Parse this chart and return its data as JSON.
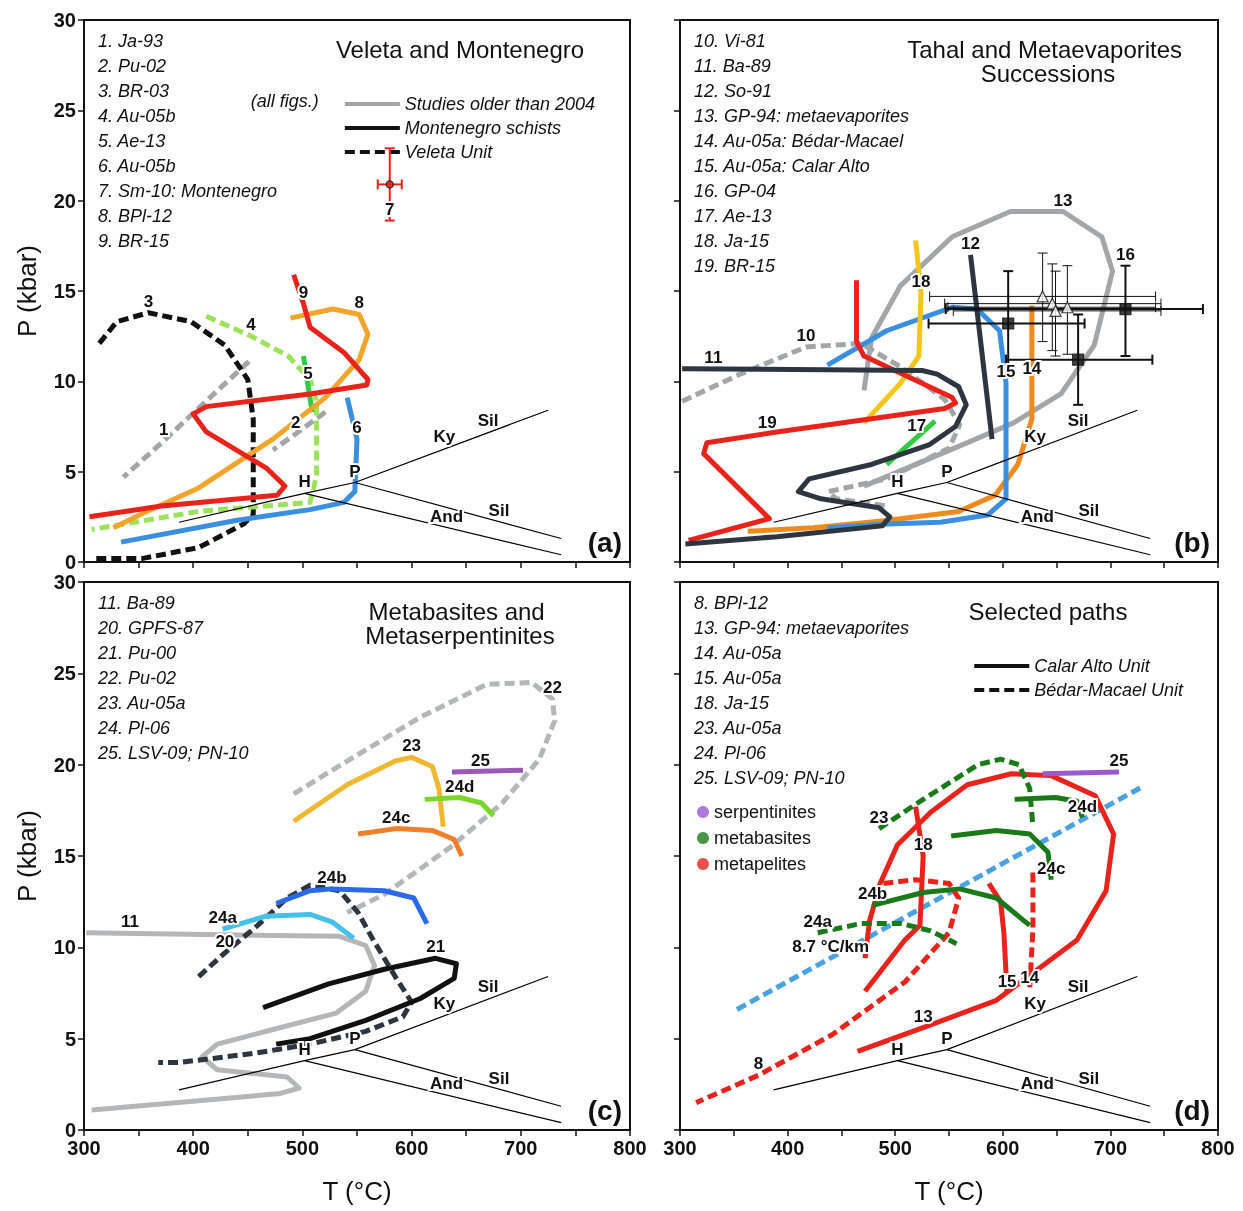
{
  "chart_data": [
    {
      "type": "line",
      "title": "Veleta and Montenegro",
      "ylabel": "P (kbar)",
      "legend_title": "(all figs.)",
      "legend": "top right",
      "tick_labels": "y",
      "grid": false,
      "marker": "none",
      "xlim": [
        300,
        800
      ],
      "ylim": [
        0,
        30
      ],
      "xticks": [
        300,
        {
          "value": 350,
          "label": null
        },
        400,
        {
          "value": 450,
          "label": null
        },
        500,
        {
          "value": 550,
          "label": null
        },
        600,
        {
          "value": 650,
          "label": null
        },
        700,
        {
          "value": 750,
          "label": null
        },
        800
      ],
      "yticks": [
        0,
        5,
        10,
        15,
        20,
        25,
        30
      ],
      "annotations": [
        "1. Ja-93",
        "2. Pu-02",
        "3. BR-03",
        "4. Au-05b",
        "5. Ae-13",
        "6. Au-05b",
        "7. Sm-10: Montenegro",
        "8. BPl-12",
        "9. BR-15",
        {
          "text": "1",
          "x": 373,
          "y": 6.7
        },
        {
          "text": "2",
          "x": 494,
          "y": 7.1
        },
        {
          "text": "3",
          "x": 359,
          "y": 13.8
        },
        {
          "text": "4",
          "x": 453,
          "y": 12.5
        },
        {
          "text": "5",
          "x": 505,
          "y": 9.8
        },
        {
          "text": "6",
          "x": 550,
          "y": 6.8
        },
        {
          "text": "7",
          "x": 580,
          "y": 18.9
        },
        {
          "text": "8",
          "x": 552,
          "y": 13.7
        },
        {
          "text": "9",
          "x": 501,
          "y": 14.3
        },
        {
          "text": "H",
          "x": 502,
          "y": 3.8
        },
        {
          "text": "P",
          "x": 548,
          "y": 4.4
        },
        {
          "text": "Ky",
          "x": 630,
          "y": 6.3
        },
        {
          "text": "Sil",
          "x": 670,
          "y": 7.2
        },
        {
          "text": "Sil",
          "x": 680,
          "y": 2.2
        },
        {
          "text": "And",
          "x": 632,
          "y": 1.9
        },
        "(a)"
      ],
      "series": [
        {
          "name": "Studies older than 2004",
          "color": "#a2a6a8",
          "line_style": "solid"
        },
        {
          "name": "Montenegro schists",
          "color": "#111111",
          "line_style": "solid"
        },
        {
          "name": "Veleta Unit",
          "color": "#111111",
          "line_style": "dashed"
        },
        {
          "color": "#000000",
          "x": [
            387,
            502,
            548,
            725
          ],
          "values": [
            2.2,
            3.8,
            4.4,
            8.4
          ]
        },
        {
          "color": "#000000",
          "x": [
            548,
            737
          ],
          "values": [
            4.4,
            1.3
          ]
        },
        {
          "color": "#000000",
          "x": [
            502,
            737
          ],
          "values": [
            3.8,
            0.4
          ]
        },
        {
          "color": "#a2a6a8",
          "line_style": "dashed",
          "x": [
            451,
            394,
            373,
            336
          ],
          "values": [
            11.1,
            7.9,
            6.7,
            4.7
          ]
        },
        {
          "color": "#a2a6a8",
          "line_style": "dashed",
          "x": [
            521,
            494,
            473
          ],
          "values": [
            8.3,
            7.1,
            6.2
          ]
        },
        {
          "color": "#111111",
          "line_style": "dashed",
          "x": [
            314,
            330,
            359,
            398,
            429,
            450,
            455,
            455,
            446,
            405,
            354,
            307
          ],
          "values": [
            12.1,
            13.3,
            13.8,
            13.3,
            12.0,
            10.1,
            7.9,
            2.6,
            2.1,
            0.8,
            0.2,
            0.2
          ]
        },
        {
          "color": "#9be35a",
          "line_style": "dashed",
          "x": [
            412,
            453,
            487,
            507,
            513,
            513,
            507,
            405,
            307
          ],
          "values": [
            13.6,
            12.5,
            11.4,
            10.1,
            8.9,
            4.8,
            3.3,
            2.8,
            1.8
          ]
        },
        {
          "color": "#2ecc40",
          "x": [
            509,
            505,
            501
          ],
          "values": [
            8.3,
            9.8,
            11.4
          ]
        },
        {
          "color": "#3a8fe0",
          "x": [
            541,
            550,
            548,
            538,
            507,
            439,
            334
          ],
          "values": [
            9.1,
            6.8,
            3.9,
            3.3,
            2.9,
            2.3,
            1.1
          ]
        },
        {
          "color": "#f2a52a",
          "x": [
            489,
            528,
            552,
            560,
            552,
            521,
            473,
            405,
            354,
            327
          ],
          "values": [
            13.5,
            14.0,
            13.7,
            12.6,
            11.2,
            9.1,
            6.8,
            4.1,
            2.7,
            1.9
          ]
        },
        {
          "color": "#e8231b",
          "x": [
            492,
            501,
            507,
            538,
            560,
            559,
            507,
            412,
            400,
            412,
            467,
            484,
            477,
            371,
            305
          ],
          "values": [
            15.9,
            14.3,
            13.0,
            11.6,
            10.1,
            9.8,
            9.3,
            8.6,
            8.2,
            7.2,
            5.2,
            4.2,
            3.7,
            3.1,
            2.5
          ]
        },
        {
          "type": "scatter",
          "marker": "circle",
          "color": "#e8231b",
          "x": [
            580
          ],
          "values": [
            20.9
          ],
          "errors": [
            [
              18.9,
              22.9
            ]
          ],
          "xerrors": [
            [
              569,
              591
            ]
          ]
        }
      ]
    },
    {
      "type": "line",
      "title": "Tahal and Metaevaporites Successions",
      "tick_labels": false,
      "grid": false,
      "marker": "none",
      "xlim": [
        300,
        800
      ],
      "ylim": [
        0,
        30
      ],
      "xticks": [
        300,
        {
          "value": 350,
          "label": null
        },
        400,
        {
          "value": 450,
          "label": null
        },
        500,
        {
          "value": 550,
          "label": null
        },
        600,
        {
          "value": 650,
          "label": null
        },
        700,
        {
          "value": 750,
          "label": null
        },
        800
      ],
      "yticks": [
        0,
        5,
        10,
        15,
        20,
        25,
        30
      ],
      "annotations": [
        "10. Vi-81",
        "11. Ba-89",
        "12. So-91",
        "13. GP-94: metaevaporites",
        "14. Au-05a: Bédar-Macael",
        "15. Au-05a: Calar Alto",
        "16. GP-04",
        "17. Ae-13",
        "18. Ja-15",
        "19. BR-15",
        {
          "text": "10",
          "x": 417,
          "y": 11.9
        },
        {
          "text": "11",
          "x": 331,
          "y": 10.7
        },
        {
          "text": "12",
          "x": 570,
          "y": 17.0
        },
        {
          "text": "13",
          "x": 656,
          "y": 19.4
        },
        {
          "text": "14",
          "x": 627,
          "y": 10.1
        },
        {
          "text": "15",
          "x": 603,
          "y": 9.9
        },
        {
          "text": "16",
          "x": 714,
          "y": 16.4
        },
        {
          "text": "17",
          "x": 520,
          "y": 6.9
        },
        {
          "text": "18",
          "x": 524,
          "y": 14.9
        },
        {
          "text": "19",
          "x": 381,
          "y": 7.1
        },
        {
          "text": "H",
          "x": 502,
          "y": 3.8
        },
        {
          "text": "P",
          "x": 548,
          "y": 4.4
        },
        {
          "text": "Ky",
          "x": 630,
          "y": 6.3
        },
        {
          "text": "Sil",
          "x": 670,
          "y": 7.2
        },
        {
          "text": "Sil",
          "x": 680,
          "y": 2.2
        },
        {
          "text": "And",
          "x": 632,
          "y": 1.9
        },
        "(b)"
      ],
      "series": [
        {
          "color": "#000000",
          "x": [
            387,
            502,
            548,
            725
          ],
          "values": [
            2.2,
            3.8,
            4.4,
            8.4
          ]
        },
        {
          "color": "#000000",
          "x": [
            548,
            737
          ],
          "values": [
            4.4,
            1.3
          ]
        },
        {
          "color": "#000000",
          "x": [
            502,
            737
          ],
          "values": [
            3.8,
            0.4
          ]
        },
        {
          "color": "#a2a6a8",
          "line_style": "dashed",
          "x": [
            302,
            356,
            417,
            468,
            505,
            546,
            560,
            550,
            492,
            438,
            445,
            492
          ],
          "values": [
            8.9,
            10.4,
            11.9,
            12.1,
            10.8,
            9.0,
            7.6,
            6.3,
            4.6,
            3.9,
            3.5,
            3.1
          ]
        },
        {
          "color": "#a2a6a8",
          "x": [
            471,
            478,
            505,
            553,
            607,
            656,
            692,
            702,
            685,
            654,
            610,
            559,
            471
          ],
          "values": [
            9.5,
            12.4,
            15.3,
            18.0,
            19.4,
            19.4,
            18.0,
            16.1,
            12.0,
            9.3,
            7.7,
            6.4,
            4.2
          ]
        },
        {
          "color": "#f08a1c",
          "x": [
            627,
            627,
            614,
            593,
            559,
            492,
            424,
            363
          ],
          "values": [
            14.2,
            7.9,
            5.4,
            3.7,
            2.8,
            2.3,
            1.9,
            1.7
          ]
        },
        {
          "color": "#3a8fe0",
          "x": [
            437,
            492,
            553,
            576,
            597,
            603,
            603,
            586,
            542,
            492,
            437
          ],
          "values": [
            10.9,
            12.8,
            14.1,
            14.0,
            12.8,
            9.9,
            3.5,
            2.6,
            2.2,
            2.1,
            1.9
          ]
        },
        {
          "color": "#f5c518",
          "x": [
            519,
            524,
            522,
            505,
            471
          ],
          "values": [
            17.8,
            14.9,
            11.4,
            9.9,
            7.7
          ]
        },
        {
          "color": "#e8231b",
          "x": [
            464,
            464,
            471,
            553,
            556,
            546,
            390,
            325,
            322,
            383,
            308
          ],
          "values": [
            15.6,
            12.2,
            11.4,
            9.1,
            8.8,
            8.5,
            7.2,
            6.6,
            6.0,
            2.4,
            1.2
          ]
        },
        {
          "color": "#2ecc40",
          "x": [
            492,
            537
          ],
          "values": [
            5.4,
            7.8
          ]
        },
        {
          "color": "#2d3640",
          "x": [
            302,
            525,
            539,
            559,
            566,
            556,
            532,
            478,
            420,
            410,
            431,
            485,
            495,
            488,
            390,
            305
          ],
          "values": [
            10.7,
            10.6,
            10.4,
            9.7,
            8.7,
            7.5,
            6.5,
            5.4,
            4.6,
            3.9,
            3.5,
            3.0,
            2.5,
            2.0,
            1.4,
            1.0
          ]
        },
        {
          "color": "#2d3640",
          "x": [
            570,
            590
          ],
          "values": [
            17.0,
            6.8
          ]
        },
        {
          "type": "scatter",
          "marker": "square",
          "color": "#111111",
          "x": [
            605,
            714,
            670
          ],
          "values": [
            13.2,
            14.0,
            11.2
          ],
          "errors": [
            [
              10.2,
              16.1
            ],
            [
              11.4,
              16.4
            ],
            [
              8.7,
              13.7
            ]
          ],
          "xerrors": [
            [
              531,
              676
            ],
            [
              547,
              786
            ],
            [
              603,
              739
            ]
          ]
        },
        {
          "type": "scatter",
          "marker": "triangle",
          "color": "#ffffff",
          "x": [
            637,
            646,
            649,
            660
          ],
          "values": [
            14.7,
            14.3,
            13.9,
            14.1
          ],
          "errors": [
            [
              12.2,
              17.1
            ],
            [
              11.7,
              16.5
            ],
            [
              11.4,
              16.1
            ],
            [
              11.5,
              16.4
            ]
          ],
          "xerrors": [
            [
              532,
              742
            ],
            [
              546,
              747
            ],
            [
              554,
              747
            ],
            [
              549,
              742
            ]
          ]
        }
      ]
    },
    {
      "type": "line",
      "title": "Metabasites and Metaserpentinites",
      "xlabel": "T (°C)",
      "ylabel": "P (kbar)",
      "grid": false,
      "marker": "none",
      "xlim": [
        300,
        800
      ],
      "ylim": [
        0,
        30
      ],
      "xticks": [
        300,
        {
          "value": 350,
          "label": null
        },
        400,
        {
          "value": 450,
          "label": null
        },
        500,
        {
          "value": 550,
          "label": null
        },
        600,
        {
          "value": 650,
          "label": null
        },
        700,
        {
          "value": 750,
          "label": null
        },
        800
      ],
      "yticks": [
        0,
        5,
        10,
        15,
        20,
        25,
        30
      ],
      "annotations": [
        "11. Ba-89",
        "20. GPFS-87",
        "21. Pu-00",
        "22. Pu-02",
        "23. Au-05a",
        "24. Pl-06",
        "25. LSV-09; PN-10",
        {
          "text": "11",
          "x": 342,
          "y": 10.8
        },
        {
          "text": "20",
          "x": 429,
          "y": 9.7
        },
        {
          "text": "21",
          "x": 622,
          "y": 9.4
        },
        {
          "text": "22",
          "x": 729,
          "y": 23.6
        },
        {
          "text": "23",
          "x": 600,
          "y": 20.4
        },
        {
          "text": "24a",
          "x": 427,
          "y": 11.0
        },
        {
          "text": "24b",
          "x": 527,
          "y": 13.2
        },
        {
          "text": "24c",
          "x": 586,
          "y": 16.5
        },
        {
          "text": "24d",
          "x": 644,
          "y": 18.2
        },
        {
          "text": "25",
          "x": 663,
          "y": 19.6
        },
        {
          "text": "H",
          "x": 502,
          "y": 3.8
        },
        {
          "text": "P",
          "x": 548,
          "y": 4.4
        },
        {
          "text": "Ky",
          "x": 630,
          "y": 6.3
        },
        {
          "text": "Sil",
          "x": 670,
          "y": 7.2
        },
        {
          "text": "Sil",
          "x": 680,
          "y": 2.2
        },
        {
          "text": "And",
          "x": 632,
          "y": 1.9
        },
        "(c)"
      ],
      "series": [
        {
          "color": "#000000",
          "x": [
            387,
            502,
            548,
            725
          ],
          "values": [
            2.2,
            3.8,
            4.4,
            8.4
          ]
        },
        {
          "color": "#000000",
          "x": [
            548,
            737
          ],
          "values": [
            4.4,
            1.3
          ]
        },
        {
          "color": "#000000",
          "x": [
            502,
            737
          ],
          "values": [
            3.8,
            0.4
          ]
        },
        {
          "color": "#b4b6b8",
          "line_style": "dashed",
          "x": [
            492,
            541,
            608,
            669,
            710,
            729,
            731,
            717,
            683,
            636,
            575,
            541
          ],
          "values": [
            18.4,
            20.2,
            22.6,
            24.4,
            24.5,
            23.6,
            22.4,
            20.3,
            17.9,
            15.5,
            12.9,
            11.9
          ]
        },
        {
          "color": "#b4b6b8",
          "x": [
            302,
            534,
            558,
            566,
            558,
            531,
            473,
            422,
            408,
            422,
            486,
            497,
            480,
            405,
            307
          ],
          "values": [
            10.8,
            10.6,
            10.1,
            9.0,
            7.6,
            6.4,
            5.5,
            4.7,
            4.0,
            3.3,
            2.9,
            2.3,
            2.0,
            1.6,
            1.1
          ]
        },
        {
          "color": "#2d3640",
          "line_style": "dashed",
          "x": [
            405,
            429,
            459,
            486,
            507,
            534,
            551,
            564,
            585,
            600,
            592,
            558,
            507,
            456,
            388,
            368
          ],
          "values": [
            8.4,
            9.7,
            11.2,
            12.7,
            13.4,
            13.1,
            11.9,
            10.5,
            8.4,
            7.0,
            6.2,
            5.4,
            4.7,
            4.2,
            3.7,
            3.7
          ]
        },
        {
          "color": "#111111",
          "x": [
            464,
            524,
            575,
            622,
            641,
            639,
            608,
            558,
            507,
            476
          ],
          "values": [
            6.7,
            8.0,
            8.8,
            9.4,
            9.1,
            8.3,
            7.2,
            6.0,
            5.0,
            4.7
          ]
        },
        {
          "color": "#f0b830",
          "x": [
            492,
            541,
            585,
            600,
            619,
            625,
            629
          ],
          "values": [
            16.9,
            18.9,
            20.2,
            20.4,
            19.9,
            18.7,
            16.6
          ]
        },
        {
          "color": "#45c0e8",
          "x": [
            427,
            466,
            507,
            527,
            547
          ],
          "values": [
            11.0,
            11.7,
            11.8,
            11.4,
            10.5
          ]
        },
        {
          "color": "#2a6ae8",
          "x": [
            476,
            507,
            527,
            575,
            602,
            614
          ],
          "values": [
            12.4,
            13.1,
            13.2,
            13.1,
            12.7,
            11.3
          ]
        },
        {
          "color": "#f07f2a",
          "x": [
            551,
            586,
            619,
            639,
            646
          ],
          "values": [
            16.2,
            16.5,
            16.4,
            15.9,
            15.0
          ]
        },
        {
          "color": "#7ad62a",
          "x": [
            612,
            644,
            664,
            675
          ],
          "values": [
            18.1,
            18.2,
            17.9,
            17.2
          ]
        },
        {
          "color": "#9b59b6",
          "x": [
            637,
            702
          ],
          "values": [
            19.6,
            19.7
          ]
        }
      ]
    },
    {
      "type": "line",
      "title": "Selected paths",
      "xlabel": "T (°C)",
      "legend": "top right",
      "tick_labels": "x",
      "grid": false,
      "marker": "none",
      "xlim": [
        300,
        800
      ],
      "ylim": [
        0,
        30
      ],
      "xticks": [
        300,
        {
          "value": 350,
          "label": null
        },
        400,
        {
          "value": 450,
          "label": null
        },
        500,
        {
          "value": 550,
          "label": null
        },
        600,
        {
          "value": 650,
          "label": null
        },
        700,
        {
          "value": 750,
          "label": null
        },
        800
      ],
      "yticks": [
        0,
        5,
        10,
        15,
        20,
        25,
        30
      ],
      "annotations": [
        "8. BPl-12",
        "13. GP-94: metaevaporites",
        "14. Au-05a",
        "15. Au-05a",
        "18. Ja-15",
        "23. Au-05a",
        "24. Pl-06",
        "25. LSV-09; PN-10",
        {
          "text": "23",
          "x": 485,
          "y": 16.5
        },
        {
          "text": "24a",
          "x": 428,
          "y": 10.8
        },
        {
          "text": "24b",
          "x": 479,
          "y": 12.3
        },
        {
          "text": "24c",
          "x": 645,
          "y": 13.7
        },
        {
          "text": "24d",
          "x": 674,
          "y": 17.1
        },
        {
          "text": "25",
          "x": 708,
          "y": 19.6
        },
        {
          "text": "15",
          "x": 604,
          "y": 7.5
        },
        {
          "text": "14",
          "x": 625,
          "y": 7.7
        },
        {
          "text": "18",
          "x": 526,
          "y": 15.0
        },
        {
          "text": "13",
          "x": 526,
          "y": 5.6
        },
        {
          "text": "8",
          "x": 373,
          "y": 3.0
        },
        {
          "text": "8.7 °C/km",
          "x": 440,
          "y": 9.4
        },
        {
          "text": "H",
          "x": 502,
          "y": 3.8
        },
        {
          "text": "P",
          "x": 548,
          "y": 4.4
        },
        {
          "text": "Ky",
          "x": 630,
          "y": 6.3
        },
        {
          "text": "Sil",
          "x": 670,
          "y": 7.2
        },
        {
          "text": "Sil",
          "x": 680,
          "y": 2.2
        },
        {
          "text": "And",
          "x": 632,
          "y": 1.9
        },
        "(d)"
      ],
      "series": [
        {
          "name": "Calar Alto Unit",
          "color": "#111111",
          "line_style": "solid"
        },
        {
          "name": "Bédar-Macael Unit",
          "color": "#111111",
          "line_style": "dashed"
        },
        {
          "name": "serpentinites",
          "type": "scatter",
          "marker": "circle",
          "color": "#9b59d0"
        },
        {
          "name": "metabasites",
          "type": "scatter",
          "marker": "circle",
          "color": "#1a7a1a"
        },
        {
          "name": "metapelites",
          "type": "scatter",
          "marker": "circle",
          "color": "#e8231b"
        },
        {
          "color": "#000000",
          "x": [
            387,
            502,
            548,
            725
          ],
          "values": [
            2.2,
            3.8,
            4.4,
            8.4
          ]
        },
        {
          "color": "#000000",
          "x": [
            548,
            737
          ],
          "values": [
            4.4,
            1.3
          ]
        },
        {
          "color": "#000000",
          "x": [
            502,
            737
          ],
          "values": [
            3.8,
            0.4
          ]
        },
        {
          "color": "#4aa3e0",
          "line_style": "dashed",
          "x": [
            353,
            730
          ],
          "values": [
            6.6,
            18.8
          ]
        },
        {
          "color": "#e8231b",
          "x": [
            472,
            476,
            486,
            502,
            533,
            567,
            608,
            645,
            686,
            703,
            696,
            669,
            628,
            594,
            526,
            465
          ],
          "values": [
            9.4,
            11.4,
            13.5,
            15.6,
            17.4,
            18.9,
            19.5,
            19.4,
            18.3,
            16.2,
            13.1,
            10.4,
            8.6,
            7.1,
            5.6,
            4.3
          ]
        },
        {
          "color": "#e8231b",
          "x": [
            519,
            526,
            523,
            509,
            472
          ],
          "values": [
            17.7,
            15.0,
            11.2,
            10.4,
            7.6
          ]
        },
        {
          "color": "#e8231b",
          "x": [
            587,
            598,
            601,
            604
          ],
          "values": [
            13.5,
            12.5,
            10.8,
            7.5
          ]
        },
        {
          "color": "#e8231b",
          "line_style": "dashed",
          "x": [
            628,
            628,
            625
          ],
          "values": [
            14.1,
            11.0,
            7.7
          ]
        },
        {
          "color": "#e8231b",
          "line_style": "dashed",
          "x": [
            489,
            519,
            550,
            559,
            550,
            509,
            441,
            373,
            315
          ],
          "values": [
            13.5,
            13.7,
            13.5,
            12.7,
            10.8,
            8.1,
            5.2,
            3.0,
            1.5
          ]
        },
        {
          "color": "#1a7a1a",
          "line_style": "dashed",
          "x": [
            485,
            526,
            577,
            598,
            615,
            625,
            628
          ],
          "values": [
            16.5,
            18.1,
            20.0,
            20.3,
            20.0,
            18.7,
            16.6
          ]
        },
        {
          "color": "#1a7a1a",
          "line_style": "dashed",
          "x": [
            428,
            468,
            506,
            533,
            557
          ],
          "values": [
            10.8,
            11.3,
            11.3,
            10.9,
            10.2
          ]
        },
        {
          "color": "#1a7a1a",
          "x": [
            479,
            526,
            560,
            594,
            625
          ],
          "values": [
            12.3,
            13.0,
            13.2,
            12.7,
            11.2
          ]
        },
        {
          "color": "#1a7a1a",
          "x": [
            552,
            594,
            625,
            642,
            645
          ],
          "values": [
            16.1,
            16.4,
            16.2,
            15.2,
            13.7
          ]
        },
        {
          "color": "#1a7a1a",
          "x": [
            611,
            649,
            669,
            674
          ],
          "values": [
            18.1,
            18.2,
            18.0,
            17.1
          ]
        },
        {
          "color": "#9b59d0",
          "x": [
            637,
            708
          ],
          "values": [
            19.5,
            19.6
          ]
        }
      ]
    }
  ]
}
